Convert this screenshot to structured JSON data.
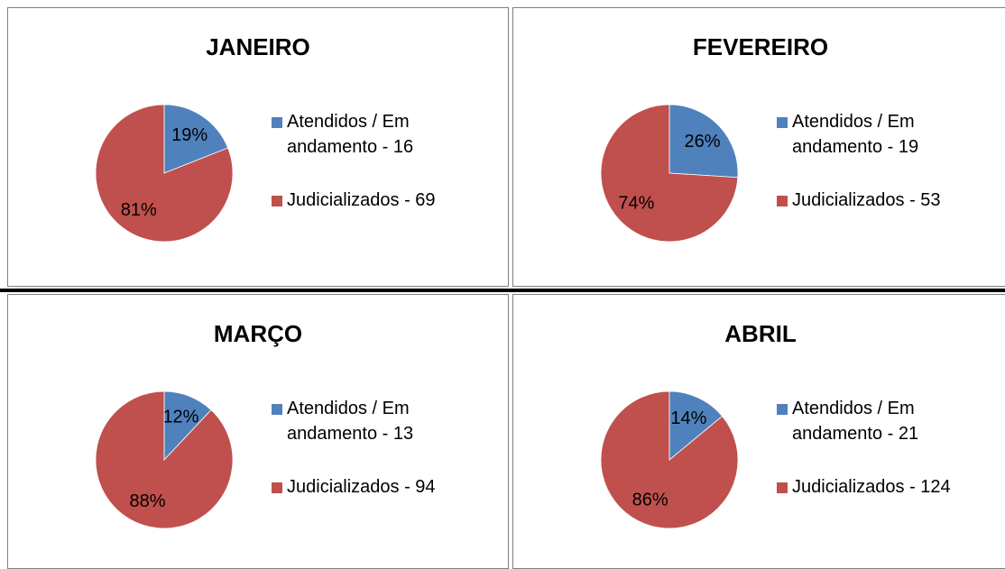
{
  "chart_data": [
    {
      "type": "pie",
      "title": "JANEIRO",
      "categories": [
        "Atendidos / Em andamento - 16",
        "Judicializados - 69"
      ],
      "values": [
        19,
        81
      ],
      "value_labels": [
        "19%",
        "81%"
      ],
      "colors": [
        "#4f81bd",
        "#c0504d"
      ]
    },
    {
      "type": "pie",
      "title": "FEVEREIRO",
      "categories": [
        "Atendidos / Em andamento - 19",
        "Judicializados - 53"
      ],
      "values": [
        26,
        74
      ],
      "value_labels": [
        "26%",
        "74%"
      ],
      "colors": [
        "#4f81bd",
        "#c0504d"
      ]
    },
    {
      "type": "pie",
      "title": "MARÇO",
      "categories": [
        "Atendidos / Em andamento - 13",
        "Judicializados - 94"
      ],
      "values": [
        12,
        88
      ],
      "value_labels": [
        "12%",
        "88%"
      ],
      "colors": [
        "#4f81bd",
        "#c0504d"
      ]
    },
    {
      "type": "pie",
      "title": "ABRIL",
      "categories": [
        "Atendidos / Em andamento - 21",
        "Judicializados - 124"
      ],
      "values": [
        14,
        86
      ],
      "value_labels": [
        "14%",
        "86%"
      ],
      "colors": [
        "#4f81bd",
        "#c0504d"
      ]
    }
  ]
}
